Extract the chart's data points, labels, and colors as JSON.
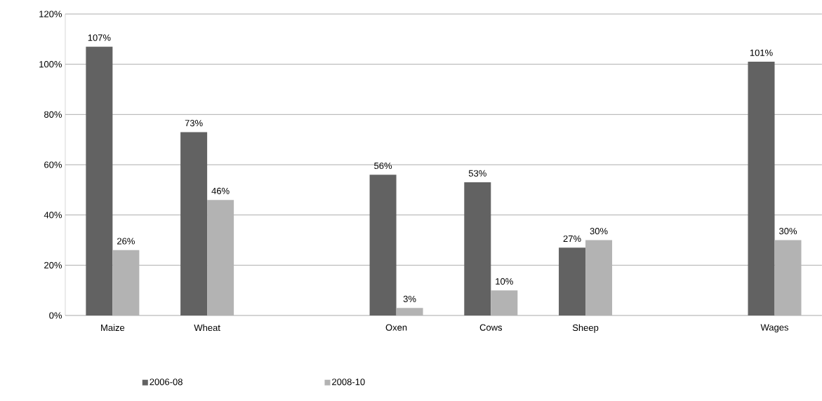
{
  "chart_data": {
    "type": "bar",
    "categories": [
      "Maize",
      "Wheat",
      null,
      "Oxen",
      "Cows",
      "Sheep",
      null,
      "Wages"
    ],
    "series": [
      {
        "name": "2006-08",
        "color": "#626262",
        "values": [
          107,
          73,
          null,
          56,
          53,
          27,
          null,
          101
        ],
        "value_labels": [
          "107%",
          "73%",
          null,
          "56%",
          "53%",
          "27%",
          null,
          "101%"
        ]
      },
      {
        "name": "2008-10",
        "color": "#b3b3b3",
        "values": [
          26,
          46,
          null,
          3,
          10,
          30,
          null,
          30
        ],
        "value_labels": [
          "26%",
          "46%",
          null,
          "3%",
          "10%",
          "30%",
          null,
          "30%"
        ]
      }
    ],
    "ylim": [
      0,
      120
    ],
    "yticks": [
      {
        "value": 0,
        "label": "0%"
      },
      {
        "value": 20,
        "label": "20%"
      },
      {
        "value": 40,
        "label": "40%"
      },
      {
        "value": 60,
        "label": "60%"
      },
      {
        "value": 80,
        "label": "80%"
      },
      {
        "value": 100,
        "label": "100%"
      },
      {
        "value": 120,
        "label": "120%"
      }
    ],
    "grid": "y",
    "legend": "bottom"
  }
}
